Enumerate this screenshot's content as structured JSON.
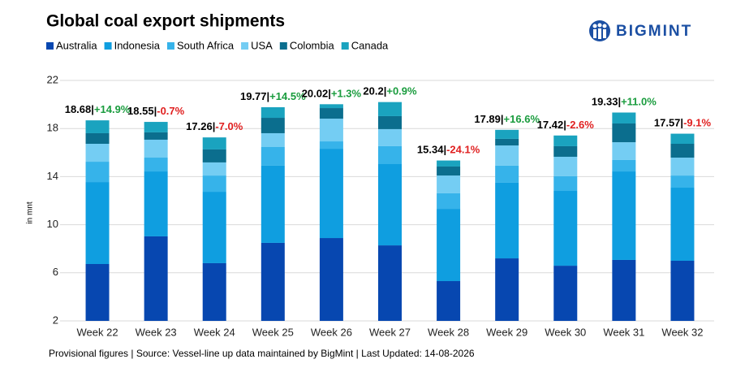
{
  "chart_data": {
    "type": "stacked_bar",
    "title": "Global coal export shipments",
    "brand": "BIGMINT",
    "y_label": "in mnt",
    "footnote": "Provisional figures | Source: Vessel-line up data maintained by BigMint | Last Updated: 14-08-2026",
    "categories": [
      "Week 22",
      "Week 23",
      "Week 24",
      "Week 25",
      "Week 26",
      "Week 27",
      "Week 28",
      "Week 29",
      "Week 30",
      "Week 31",
      "Week 32"
    ],
    "series": [
      {
        "name": "Australia",
        "color": "#0747b0",
        "values": [
          6.73,
          9.03,
          6.8,
          8.49,
          8.89,
          8.28,
          5.31,
          7.2,
          6.59,
          7.07,
          7.0
        ]
      },
      {
        "name": "Indonesia",
        "color": "#0f9ee0",
        "values": [
          6.82,
          5.4,
          5.94,
          6.42,
          7.43,
          6.76,
          6.01,
          6.29,
          6.22,
          7.36,
          6.08
        ]
      },
      {
        "name": "South Africa",
        "color": "#36b3ea",
        "values": [
          1.69,
          1.15,
          1.35,
          1.55,
          0.61,
          1.49,
          1.29,
          1.42,
          1.22,
          0.95,
          1.01
        ]
      },
      {
        "name": "USA",
        "color": "#74cdf3",
        "values": [
          1.49,
          1.49,
          1.09,
          1.15,
          1.89,
          1.42,
          1.48,
          1.68,
          1.62,
          1.48,
          1.49
        ]
      },
      {
        "name": "Colombia",
        "color": "#0b6e8e",
        "values": [
          0.88,
          0.61,
          1.08,
          1.28,
          0.88,
          1.08,
          0.75,
          0.55,
          0.88,
          1.56,
          1.15
        ]
      },
      {
        "name": "Canada",
        "color": "#1aa3bf",
        "values": [
          1.07,
          0.87,
          1.0,
          0.88,
          0.32,
          1.17,
          0.5,
          0.75,
          0.89,
          0.91,
          0.84
        ]
      }
    ],
    "totals": [
      18.68,
      18.55,
      17.26,
      19.77,
      20.02,
      20.2,
      15.34,
      17.89,
      17.42,
      19.33,
      17.57
    ],
    "separator": "|",
    "changes": [
      {
        "value": 14.9,
        "label": "+14.9%"
      },
      {
        "value": -0.7,
        "label": "-0.7%"
      },
      {
        "value": -7.0,
        "label": "-7.0%"
      },
      {
        "value": 14.5,
        "label": "+14.5%"
      },
      {
        "value": 1.3,
        "label": "+1.3%"
      },
      {
        "value": 0.9,
        "label": "+0.9%"
      },
      {
        "value": -24.1,
        "label": "-24.1%"
      },
      {
        "value": 16.6,
        "label": "+16.6%"
      },
      {
        "value": -2.6,
        "label": "-2.6%"
      },
      {
        "value": 11.0,
        "label": "+11.0%"
      },
      {
        "value": -9.1,
        "label": "-9.1%"
      }
    ],
    "positive_color": "#1a9c3e",
    "negative_color": "#e02020",
    "ylim": [
      2,
      22
    ],
    "yticks": [
      2,
      6,
      10,
      14,
      18,
      22
    ],
    "grid": true
  }
}
